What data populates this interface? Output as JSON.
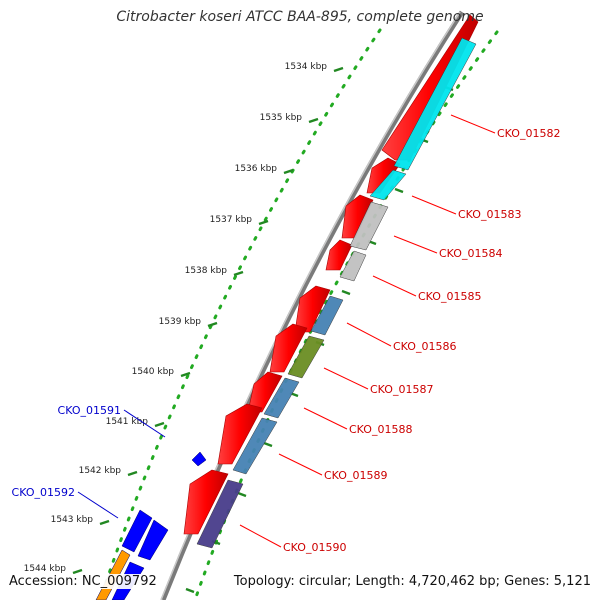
{
  "title": "Citrobacter koseri ATCC BAA-895, complete genome",
  "footer": {
    "accession": "Accession: NC_009792",
    "summary": "Topology: circular; Length: 4,720,462 bp; Genes: 5,121"
  },
  "colors": {
    "forward_strand": "#ff0000",
    "reverse_label": "#cc0000",
    "forward_label": "#0000cc",
    "gc_dots": "#22aa22",
    "backbone": "#808080"
  },
  "scale_ticks": [
    {
      "label": "1534 kbp"
    },
    {
      "label": "1535 kbp"
    },
    {
      "label": "1536 kbp"
    },
    {
      "label": "1537 kbp"
    },
    {
      "label": "1538 kbp"
    },
    {
      "label": "1539 kbp"
    },
    {
      "label": "1540 kbp"
    },
    {
      "label": "1541 kbp"
    },
    {
      "label": "1542 kbp"
    },
    {
      "label": "1543 kbp"
    },
    {
      "label": "1544 kbp"
    }
  ],
  "genes_right": [
    {
      "label": "CKO_01582",
      "color": "#00e5ee"
    },
    {
      "label": "CKO_01583",
      "color": "#00e5ee"
    },
    {
      "label": "CKO_01584",
      "color": "#c0c0c0"
    },
    {
      "label": "CKO_01585",
      "color": "#c0c0c0"
    },
    {
      "label": "CKO_01586",
      "color": "#4682b4"
    },
    {
      "label": "CKO_01587",
      "color": "#6b8e23"
    },
    {
      "label": "CKO_01588",
      "color": "#4682b4"
    },
    {
      "label": "CKO_01589",
      "color": "#4682b4"
    },
    {
      "label": "CKO_01590",
      "color": "#483d8b"
    }
  ],
  "genes_left": [
    {
      "label": "CKO_01591",
      "color": "#0000ff"
    },
    {
      "label": "CKO_01592",
      "color": "#0000ff"
    }
  ]
}
